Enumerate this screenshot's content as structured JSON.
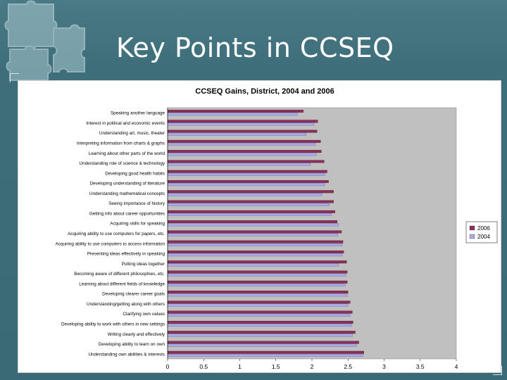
{
  "slide": {
    "title": "Key Points in CCSEQ"
  },
  "chart_data": {
    "type": "bar",
    "orientation": "horizontal",
    "title": "CCSEQ Gains, District, 2004 and 2006",
    "xlim": [
      0,
      4
    ],
    "xticks": [
      "0",
      "0.5",
      "1",
      "1.5",
      "2",
      "2.5",
      "3",
      "3.5",
      "4"
    ],
    "grid": false,
    "legend_position": "right",
    "colors": {
      "2006": "#8a2f57",
      "2004": "#a9a9e6",
      "plot_bg": "#c0c0c0"
    },
    "categories": [
      "Speaking another language",
      "Interest in political and economic events",
      "Understanding art, music, theater",
      "Interpreting information from charts & graphs",
      "Learning about other parts of the world",
      "Understanding role of science & technology",
      "Developing good health habits",
      "Developing understanding of literature",
      "Understanding mathematical concepts",
      "Seeing importance of history",
      "Getting info about career opportunities",
      "Acquiring skills for speaking",
      "Acquiring ability to use computers for papers, etc.",
      "Acquiring ability to use computers to access information",
      "Presenting ideas effectively in speaking",
      "Putting ideas together",
      "Becoming aware of different philosophies, etc.",
      "Learning about different fields of knowledge",
      "Developing clearer career goals",
      "Understanding/getting along with others",
      "Clarifying own values",
      "Developing ability to work with others in new settings",
      "Writing clearly and effectively",
      "Developing ability to learn on own",
      "Understanding own abilities & interests"
    ],
    "series": [
      {
        "name": "2006",
        "values": [
          1.88,
          2.08,
          2.07,
          2.12,
          2.13,
          2.17,
          2.21,
          2.23,
          2.3,
          2.3,
          2.32,
          2.35,
          2.41,
          2.43,
          2.44,
          2.48,
          2.49,
          2.49,
          2.5,
          2.53,
          2.56,
          2.57,
          2.6,
          2.65,
          2.72
        ]
      },
      {
        "name": "2004",
        "values": [
          1.8,
          2.03,
          1.92,
          2.05,
          2.06,
          1.98,
          2.18,
          2.18,
          2.14,
          2.24,
          2.27,
          2.37,
          2.36,
          2.42,
          2.42,
          2.37,
          2.47,
          2.46,
          2.49,
          2.5,
          2.53,
          2.55,
          2.56,
          2.62,
          2.71
        ]
      }
    ]
  }
}
